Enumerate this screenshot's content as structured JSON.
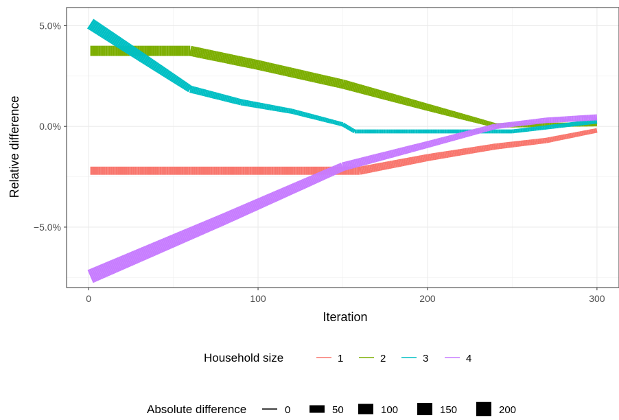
{
  "chart_data": {
    "type": "line",
    "xlabel": "Iteration",
    "ylabel": "Relative difference",
    "xlim": [
      -13,
      313
    ],
    "ylim": [
      -8.0,
      5.9
    ],
    "x_ticks": [
      0,
      100,
      200,
      300
    ],
    "x_tick_labels": [
      "0",
      "100",
      "200",
      "300"
    ],
    "y_ticks": [
      5,
      0,
      -5
    ],
    "y_tick_labels": [
      "5.0%",
      "0.0%",
      "−5.0%"
    ],
    "grid": true,
    "legend_position": "bottom",
    "color_legend": {
      "title": "Household size",
      "entries": [
        "1",
        "2",
        "3",
        "4"
      ]
    },
    "size_legend": {
      "title": "Absolute difference",
      "entries": [
        "0",
        "50",
        "100",
        "150",
        "200"
      ],
      "values": [
        0,
        50,
        100,
        150,
        200
      ]
    },
    "series": [
      {
        "name": "1",
        "color": "#F8766D",
        "points": [
          [
            1,
            -2.2
          ],
          [
            160,
            -2.2
          ],
          [
            200,
            -1.55
          ],
          [
            240,
            -1.0
          ],
          [
            270,
            -0.7
          ],
          [
            300,
            -0.2
          ]
        ],
        "abs_diff": [
          [
            1,
            60
          ],
          [
            160,
            60
          ],
          [
            220,
            35
          ],
          [
            300,
            15
          ]
        ]
      },
      {
        "name": "2",
        "color": "#7CAE00",
        "points": [
          [
            1,
            3.75
          ],
          [
            60,
            3.75
          ],
          [
            100,
            3.05
          ],
          [
            150,
            2.1
          ],
          [
            200,
            0.95
          ],
          [
            240,
            0.05
          ],
          [
            300,
            0.1
          ]
        ],
        "abs_diff": [
          [
            1,
            100
          ],
          [
            60,
            100
          ],
          [
            150,
            80
          ],
          [
            240,
            15
          ],
          [
            300,
            10
          ]
        ]
      },
      {
        "name": "3",
        "color": "#00BFC4",
        "points": [
          [
            1,
            5.1
          ],
          [
            60,
            1.85
          ],
          [
            90,
            1.2
          ],
          [
            120,
            0.75
          ],
          [
            150,
            0.1
          ],
          [
            157,
            -0.25
          ],
          [
            250,
            -0.25
          ],
          [
            300,
            0.25
          ]
        ],
        "abs_diff": [
          [
            1,
            130
          ],
          [
            60,
            45
          ],
          [
            120,
            20
          ],
          [
            157,
            10
          ],
          [
            250,
            10
          ],
          [
            300,
            15
          ]
        ]
      },
      {
        "name": "4",
        "color": "#C77CFF",
        "points": [
          [
            1,
            -7.45
          ],
          [
            80,
            -4.6
          ],
          [
            150,
            -2.0
          ],
          [
            200,
            -0.9
          ],
          [
            240,
            0.0
          ],
          [
            270,
            0.3
          ],
          [
            300,
            0.45
          ]
        ],
        "abs_diff": [
          [
            1,
            200
          ],
          [
            80,
            130
          ],
          [
            150,
            70
          ],
          [
            200,
            40
          ],
          [
            250,
            20
          ],
          [
            300,
            30
          ]
        ]
      }
    ]
  }
}
